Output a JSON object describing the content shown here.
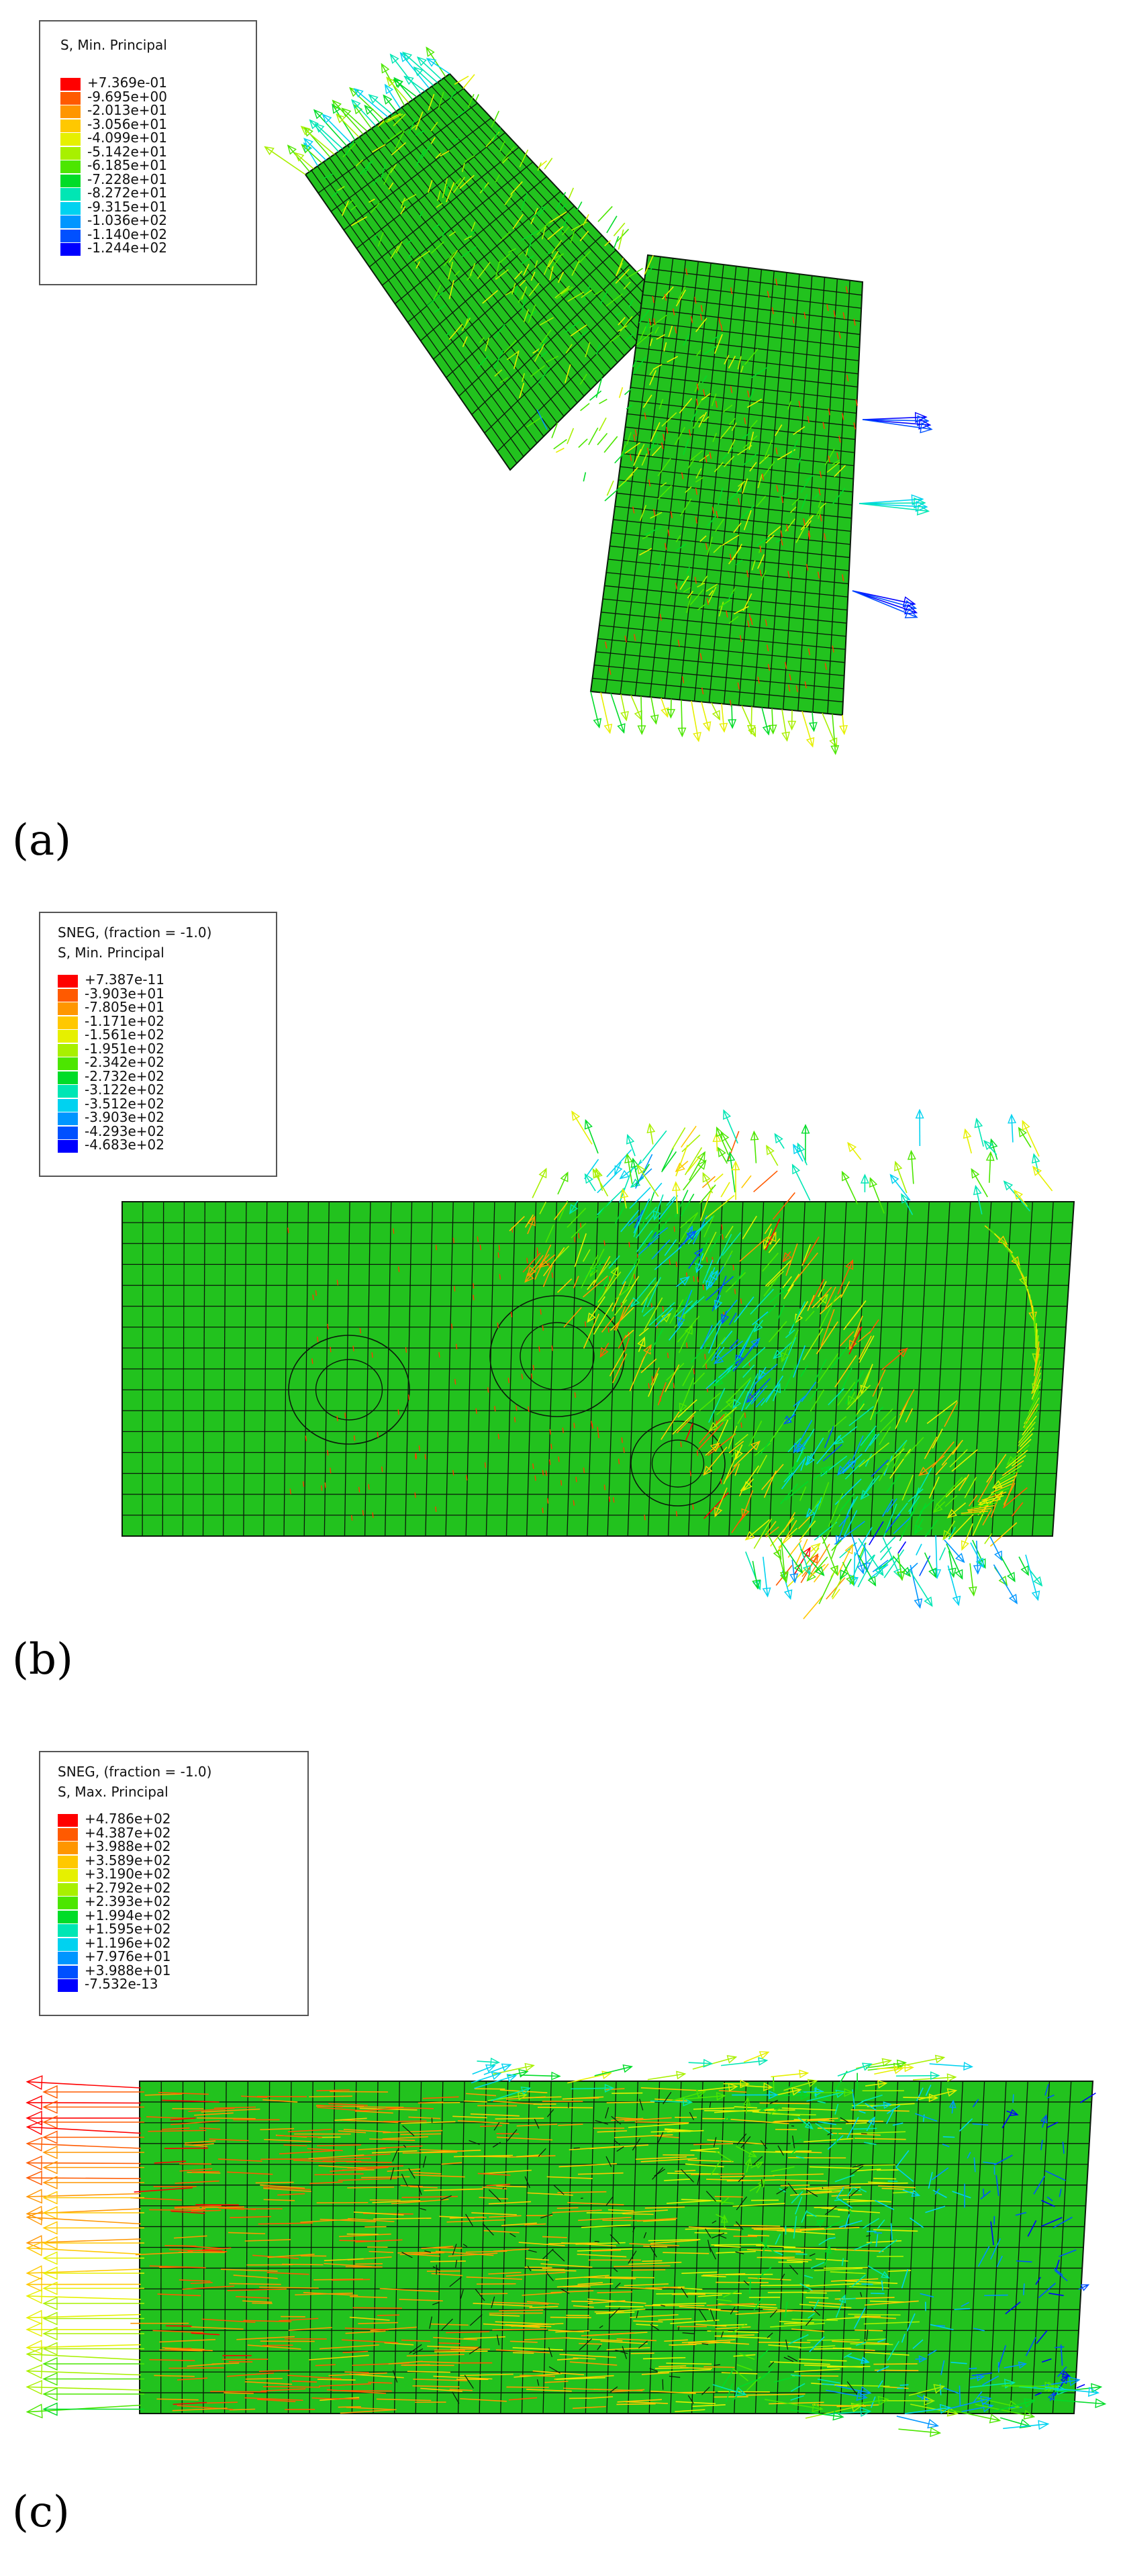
{
  "panels": [
    {
      "id": "a",
      "label": "(a)",
      "legend": {
        "line1": "S, Min. Principal",
        "line2": "",
        "values": [
          "+7.369e-01",
          "-9.695e+00",
          "-2.013e+01",
          "-3.056e+01",
          "-4.099e+01",
          "-5.142e+01",
          "-6.185e+01",
          "-7.228e+01",
          "-8.272e+01",
          "-9.315e+01",
          "-1.036e+02",
          "-1.140e+02",
          "-1.244e+02"
        ]
      }
    },
    {
      "id": "b",
      "label": "(b)",
      "legend": {
        "line1": "SNEG, (fraction = -1.0)",
        "line2": "S, Min. Principal",
        "values": [
          "+7.387e-11",
          "-3.903e+01",
          "-7.805e+01",
          "-1.171e+02",
          "-1.561e+02",
          "-1.951e+02",
          "-2.342e+02",
          "-2.732e+02",
          "-3.122e+02",
          "-3.512e+02",
          "-3.903e+02",
          "-4.293e+02",
          "-4.683e+02"
        ]
      }
    },
    {
      "id": "c",
      "label": "(c)",
      "legend": {
        "line1": "SNEG, (fraction = -1.0)",
        "line2": "S, Max. Principal",
        "values": [
          "+4.786e+02",
          "+4.387e+02",
          "+3.988e+02",
          "+3.589e+02",
          "+3.190e+02",
          "+2.792e+02",
          "+2.393e+02",
          "+1.994e+02",
          "+1.595e+02",
          "+1.196e+02",
          "+7.976e+01",
          "+3.988e+01",
          "-7.532e-13"
        ]
      }
    }
  ],
  "colors": {
    "scale": [
      "#ff0000",
      "#ff5a00",
      "#ff9600",
      "#ffc800",
      "#e6f000",
      "#a8f000",
      "#4ce600",
      "#00dc28",
      "#00e6b4",
      "#00d2f0",
      "#0096ff",
      "#0050ff",
      "#0000ff"
    ],
    "mesh_fill": "#22c21e",
    "mesh_line": "#0a1a0a"
  }
}
